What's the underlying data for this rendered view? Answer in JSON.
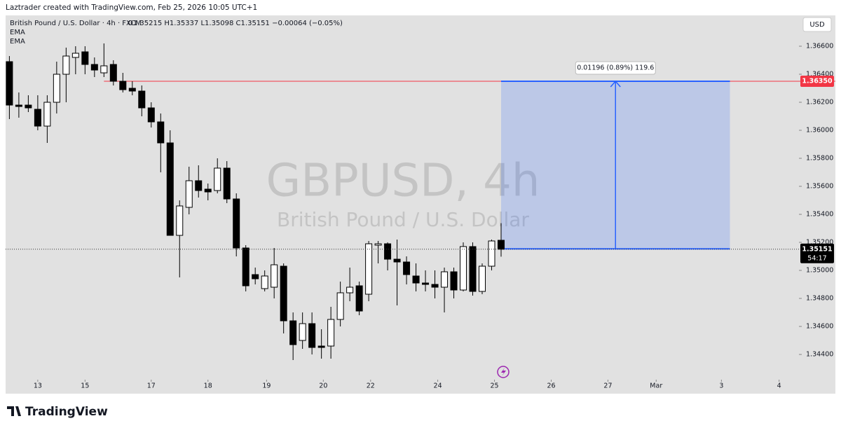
{
  "header": {
    "credit": "Laztrader created with TradingView.com, Feb 25, 2026 10:05 UTC+1"
  },
  "footer": {
    "brand": "TradingView"
  },
  "chart_data": {
    "type": "candlestick",
    "symbol_line": "British Pound / U.S. Dollar · 4h · FXCM",
    "ohlc_line": "O1.35215  H1.35337  L1.35098  C1.35151  −0.00064 (−0.05%)",
    "indicators": [
      "EMA",
      "EMA"
    ],
    "watermark_title": "GBPUSD, 4h",
    "watermark_subtitle": "British Pound / U.S. Dollar",
    "currency": "USD",
    "x": [
      0,
      1,
      2,
      3,
      4,
      5,
      6,
      7,
      8,
      9,
      10,
      11,
      12,
      13,
      14,
      15,
      16,
      17,
      18,
      19,
      20,
      21,
      22,
      23,
      24,
      25,
      26,
      27,
      28,
      29,
      30,
      31,
      32,
      33,
      34,
      35,
      36,
      37,
      38,
      39,
      40,
      41,
      42,
      43,
      44,
      45,
      46,
      47,
      48,
      49,
      50,
      51,
      52
    ],
    "open": [
      1.3649,
      1.3618,
      1.3618,
      1.3615,
      1.3603,
      1.362,
      1.364,
      1.3652,
      1.3656,
      1.3647,
      1.3641,
      1.3647,
      1.3635,
      1.363,
      1.3628,
      1.3616,
      1.3606,
      1.3591,
      1.3525,
      1.3545,
      1.3564,
      1.3558,
      1.3557,
      1.3573,
      1.3551,
      1.3516,
      1.3497,
      1.3487,
      1.3488,
      1.3503,
      1.3464,
      1.345,
      1.3462,
      1.3446,
      1.3446,
      1.3465,
      1.3484,
      1.3489,
      1.3483,
      1.3518,
      1.3519,
      1.3508,
      1.3506,
      1.3496,
      1.3491,
      1.349,
      1.3488,
      1.3499,
      1.3486,
      1.3517,
      1.3485,
      1.3503,
      1.35215
    ],
    "high": [
      1.3653,
      1.3627,
      1.3625,
      1.3625,
      1.3625,
      1.3649,
      1.3659,
      1.366,
      1.366,
      1.3652,
      1.3662,
      1.365,
      1.3641,
      1.3635,
      1.3632,
      1.362,
      1.3612,
      1.36,
      1.355,
      1.3574,
      1.3575,
      1.3562,
      1.358,
      1.3578,
      1.3555,
      1.3518,
      1.3502,
      1.35,
      1.3516,
      1.3505,
      1.347,
      1.347,
      1.347,
      1.3458,
      1.3474,
      1.3492,
      1.3502,
      1.3492,
      1.3521,
      1.3521,
      1.352,
      1.3522,
      1.351,
      1.3505,
      1.35,
      1.35,
      1.3502,
      1.3502,
      1.352,
      1.352,
      1.3505,
      1.3522,
      1.35337
    ],
    "low": [
      1.3608,
      1.3609,
      1.3613,
      1.36,
      1.3591,
      1.3612,
      1.362,
      1.364,
      1.364,
      1.3638,
      1.3638,
      1.3632,
      1.3627,
      1.3625,
      1.361,
      1.3602,
      1.357,
      1.3525,
      1.3495,
      1.354,
      1.3552,
      1.355,
      1.3555,
      1.3548,
      1.351,
      1.3485,
      1.349,
      1.3485,
      1.348,
      1.3455,
      1.3436,
      1.3444,
      1.344,
      1.3437,
      1.3437,
      1.346,
      1.3478,
      1.3468,
      1.3478,
      1.3505,
      1.35,
      1.3475,
      1.349,
      1.3485,
      1.3485,
      1.348,
      1.347,
      1.348,
      1.3485,
      1.3482,
      1.3483,
      1.35,
      1.35098
    ],
    "close": [
      1.3618,
      1.3617,
      1.3616,
      1.3603,
      1.362,
      1.364,
      1.3653,
      1.3655,
      1.3647,
      1.3643,
      1.3646,
      1.3635,
      1.3629,
      1.3628,
      1.3616,
      1.3606,
      1.3591,
      1.3525,
      1.3546,
      1.3564,
      1.3557,
      1.3556,
      1.3573,
      1.3551,
      1.3516,
      1.3489,
      1.3494,
      1.3496,
      1.3504,
      1.3464,
      1.3447,
      1.3462,
      1.3445,
      1.3445,
      1.3465,
      1.3484,
      1.3488,
      1.3471,
      1.3519,
      1.3519,
      1.3508,
      1.3506,
      1.3497,
      1.3491,
      1.349,
      1.3488,
      1.3499,
      1.3486,
      1.3517,
      1.3485,
      1.3503,
      1.3521,
      1.35151
    ],
    "up_color": "#ffffff",
    "down_color": "#000000",
    "xlim": [
      -0.4,
      83.5
    ],
    "ylim": [
      1.3423,
      1.3682
    ],
    "xticks": [
      {
        "value": 3,
        "label": "13"
      },
      {
        "value": 8,
        "label": "15"
      },
      {
        "value": 15,
        "label": "17"
      },
      {
        "value": 21,
        "label": "18"
      },
      {
        "value": 27.2,
        "label": "19"
      },
      {
        "value": 33.2,
        "label": "20"
      },
      {
        "value": 38.2,
        "label": "22"
      },
      {
        "value": 45.3,
        "label": "24"
      },
      {
        "value": 51.3,
        "label": "25"
      },
      {
        "value": 57.3,
        "label": "26"
      },
      {
        "value": 63.3,
        "label": "27"
      },
      {
        "value": 68.4,
        "label": "Mar"
      },
      {
        "value": 75.3,
        "label": "3"
      },
      {
        "value": 81.4,
        "label": "4"
      }
    ],
    "yticks": [
      {
        "value": 1.366,
        "label": "1.36600"
      },
      {
        "value": 1.364,
        "label": "1.36400"
      },
      {
        "value": 1.362,
        "label": "1.36200"
      },
      {
        "value": 1.36,
        "label": "1.36000"
      },
      {
        "value": 1.358,
        "label": "1.35800"
      },
      {
        "value": 1.356,
        "label": "1.35600"
      },
      {
        "value": 1.354,
        "label": "1.35400"
      },
      {
        "value": 1.352,
        "label": "1.35200"
      },
      {
        "value": 1.35,
        "label": "1.35000"
      },
      {
        "value": 1.348,
        "label": "1.34800"
      },
      {
        "value": 1.346,
        "label": "1.34600"
      },
      {
        "value": 1.344,
        "label": "1.34400"
      }
    ],
    "hline": {
      "value": 1.3635,
      "label": "1.36350",
      "x": 10,
      "color": "#f23645"
    },
    "last_price": {
      "value": 1.35151,
      "label": "1.35151",
      "countdown": "54:17"
    },
    "measure": {
      "x": [
        52,
        76.2
      ],
      "y": [
        1.35154,
        1.3635
      ],
      "label": "0.01196 (0.89%) 119.6",
      "color": "#2962ff"
    }
  }
}
